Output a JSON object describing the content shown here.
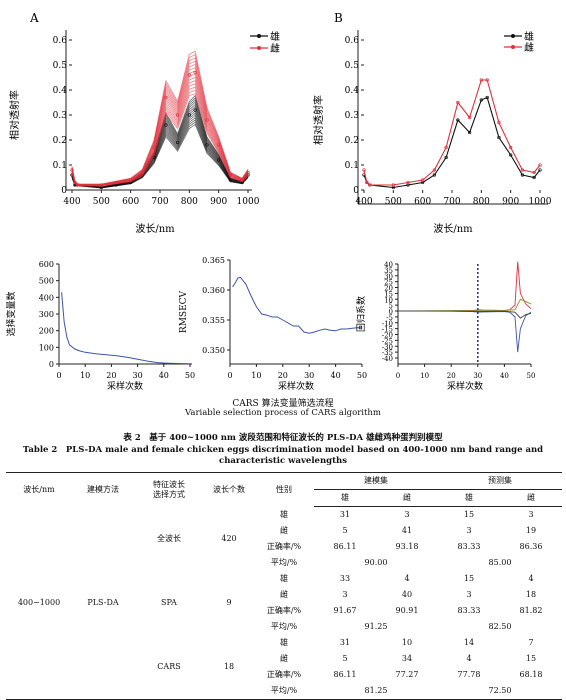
{
  "figure": {
    "panel_a_label": "A",
    "panel_b_label": "B",
    "y_label": "相对透射率",
    "x_label": "波长/nm",
    "legend_male": "雄",
    "legend_female": "雌",
    "top_y_ticks": [
      "0.6",
      "0.5",
      "0.4",
      "0.3",
      "0.2",
      "0.1",
      "0"
    ],
    "top_x_ticks": [
      "400",
      "500",
      "600",
      "700",
      "800",
      "900",
      "1000"
    ],
    "bottom_x_label": "采样次数",
    "bottom_x_ticks": [
      "0",
      "10",
      "20",
      "30",
      "40",
      "50"
    ],
    "p1_y_label": "选择变量数",
    "p1_y_ticks": [
      "600",
      "500",
      "400",
      "300",
      "200",
      "100",
      "0"
    ],
    "p2_y_label": "RMSECV",
    "p2_y_ticks": [
      "0.365",
      "0.360",
      "0.355",
      "0.350"
    ],
    "p3_y_label": "回归系数",
    "p3_y_ticks": [
      "40",
      "35",
      "30",
      "25",
      "20",
      "15",
      "10",
      "5",
      "0",
      "-5",
      "-10",
      "-15",
      "-20",
      "-25",
      "-30",
      "-35",
      "-40"
    ],
    "caption_cn": "CARS 算法变量筛选流程",
    "caption_en": "Variable selection process of CARS algorithm",
    "colors": {
      "male": "#111111",
      "female": "#e0303a",
      "blue": "#3a55a8",
      "grid": "#888888"
    }
  },
  "chart_data": [
    {
      "type": "line",
      "panel": "A",
      "x_range": [
        400,
        1000
      ],
      "ylim": [
        0,
        0.6
      ],
      "series": [
        {
          "name": "雄",
          "x": [
            400,
            410,
            420,
            500,
            550,
            600,
            640,
            680,
            720,
            760,
            800,
            820,
            860,
            900,
            940,
            980,
            1000
          ],
          "values": [
            0.06,
            0.02,
            0.02,
            0.01,
            0.02,
            0.03,
            0.06,
            0.13,
            0.26,
            0.19,
            0.3,
            0.32,
            0.18,
            0.12,
            0.04,
            0.03,
            0.06
          ]
        },
        {
          "name": "雌",
          "x": [
            400,
            410,
            420,
            500,
            550,
            600,
            640,
            680,
            720,
            760,
            800,
            820,
            860,
            900,
            940,
            980,
            1000
          ],
          "values": [
            0.08,
            0.03,
            0.02,
            0.02,
            0.03,
            0.04,
            0.07,
            0.17,
            0.37,
            0.3,
            0.46,
            0.47,
            0.28,
            0.18,
            0.06,
            0.04,
            0.07
          ]
        }
      ]
    },
    {
      "type": "line",
      "panel": "B",
      "x_range": [
        400,
        1000
      ],
      "ylim": [
        0,
        0.6
      ],
      "series": [
        {
          "name": "雄",
          "x": [
            400,
            410,
            420,
            500,
            550,
            600,
            640,
            680,
            720,
            760,
            800,
            820,
            860,
            900,
            940,
            980,
            1000
          ],
          "values": [
            0.06,
            0.03,
            0.02,
            0.01,
            0.02,
            0.03,
            0.06,
            0.13,
            0.28,
            0.23,
            0.36,
            0.37,
            0.21,
            0.14,
            0.06,
            0.05,
            0.08
          ]
        },
        {
          "name": "雌",
          "x": [
            400,
            410,
            420,
            500,
            550,
            600,
            640,
            680,
            720,
            760,
            800,
            820,
            860,
            900,
            940,
            980,
            1000
          ],
          "values": [
            0.08,
            0.03,
            0.02,
            0.02,
            0.03,
            0.04,
            0.08,
            0.17,
            0.35,
            0.29,
            0.44,
            0.44,
            0.27,
            0.17,
            0.08,
            0.07,
            0.1
          ]
        }
      ]
    },
    {
      "type": "line",
      "panel": "selected-variables",
      "x_range": [
        0,
        50
      ],
      "ylim": [
        0,
        600
      ],
      "series": [
        {
          "x": [
            1,
            2,
            3,
            4,
            6,
            8,
            10,
            14,
            18,
            22,
            26,
            30,
            34,
            38,
            42,
            46,
            50
          ],
          "values": [
            430,
            250,
            160,
            115,
            90,
            78,
            70,
            62,
            56,
            50,
            40,
            28,
            16,
            8,
            5,
            3,
            2
          ]
        }
      ]
    },
    {
      "type": "line",
      "panel": "RMSECV",
      "x_range": [
        0,
        50
      ],
      "ylim": [
        0.35,
        0.365
      ],
      "series": [
        {
          "x": [
            1,
            2,
            3,
            4,
            5,
            6,
            8,
            10,
            12,
            14,
            16,
            18,
            20,
            22,
            24,
            26,
            28,
            30,
            32,
            34,
            36,
            38,
            40,
            42,
            44,
            46,
            48,
            50
          ],
          "values": [
            0.3605,
            0.3612,
            0.362,
            0.3621,
            0.3615,
            0.361,
            0.359,
            0.3572,
            0.356,
            0.3558,
            0.3555,
            0.3555,
            0.355,
            0.3545,
            0.354,
            0.354,
            0.353,
            0.3528,
            0.353,
            0.3533,
            0.3535,
            0.3533,
            0.3532,
            0.3535,
            0.3535,
            0.3536,
            0.3537,
            0.3537
          ]
        }
      ]
    },
    {
      "type": "line",
      "panel": "regression-coefficients",
      "x_range": [
        0,
        50
      ],
      "ylim": [
        -40,
        40
      ],
      "marker_x": 30,
      "series": [
        {
          "x": [
            0,
            10,
            20,
            28,
            30,
            32,
            40,
            42,
            44,
            45,
            46,
            48,
            50
          ],
          "values": [
            0,
            0,
            0,
            0.5,
            1,
            0.8,
            0.5,
            1,
            5,
            42,
            15,
            6,
            2
          ]
        },
        {
          "x": [
            0,
            10,
            20,
            28,
            30,
            32,
            40,
            42,
            44,
            45,
            46,
            48,
            50
          ],
          "values": [
            0,
            0,
            0,
            -0.5,
            -1,
            -0.8,
            -0.5,
            -1,
            -5,
            -35,
            -15,
            -4,
            -1
          ]
        },
        {
          "x": [
            0,
            10,
            20,
            30,
            40,
            44,
            46,
            48,
            50
          ],
          "values": [
            0,
            0.2,
            0.3,
            0.5,
            0.5,
            1,
            10,
            8,
            6
          ]
        },
        {
          "x": [
            0,
            10,
            20,
            30,
            40,
            44,
            46,
            48,
            50
          ],
          "values": [
            0,
            -0.1,
            -0.2,
            -0.3,
            -0.2,
            -1,
            -6,
            -3,
            -2
          ]
        }
      ]
    }
  ],
  "table": {
    "title_cn": "表 2　基于 400~1000 nm 波段范围和特征波长的 PLS-DA 雄雌鸡种蛋判别模型",
    "title_en": "Table 2　PLS-DA male and female chicken eggs discrimination model based on 400-1000 nm band range and",
    "title_en2": "characteristic wavelengths",
    "headers": {
      "wavelength": "波长/nm",
      "method": "建模方法",
      "selection_line1": "特征波长",
      "selection_line2": "选择方式",
      "count": "波长个数",
      "sex": "性别",
      "train": "建模集",
      "test": "预测集",
      "male": "雄",
      "female": "雌"
    },
    "range": "400~1000",
    "model": "PLS-DA",
    "groups": [
      {
        "method": "全波长",
        "count": "420",
        "rows": [
          {
            "label": "雄",
            "cells": [
              "31",
              "3",
              "15",
              "3"
            ]
          },
          {
            "label": "雌",
            "cells": [
              "5",
              "41",
              "3",
              "19"
            ]
          },
          {
            "label": "正确率/%",
            "cells": [
              "86.11",
              "93.18",
              "83.33",
              "86.36"
            ]
          }
        ],
        "avg_label": "平均/%",
        "avg_train": "90.00",
        "avg_test": "85.00"
      },
      {
        "method": "SPA",
        "count": "9",
        "rows": [
          {
            "label": "雄",
            "cells": [
              "33",
              "4",
              "15",
              "4"
            ]
          },
          {
            "label": "雌",
            "cells": [
              "3",
              "40",
              "3",
              "18"
            ]
          },
          {
            "label": "正确率/%",
            "cells": [
              "91.67",
              "90.91",
              "83.33",
              "81.82"
            ]
          }
        ],
        "avg_label": "平均/%",
        "avg_train": "91.25",
        "avg_test": "82.50"
      },
      {
        "method": "CARS",
        "count": "18",
        "rows": [
          {
            "label": "雄",
            "cells": [
              "31",
              "10",
              "14",
              "7"
            ]
          },
          {
            "label": "雌",
            "cells": [
              "5",
              "34",
              "4",
              "15"
            ]
          },
          {
            "label": "正确率/%",
            "cells": [
              "86.11",
              "77.27",
              "77.78",
              "68.18"
            ]
          }
        ],
        "avg_label": "平均/%",
        "avg_train": "81.25",
        "avg_test": "72.50"
      }
    ]
  }
}
